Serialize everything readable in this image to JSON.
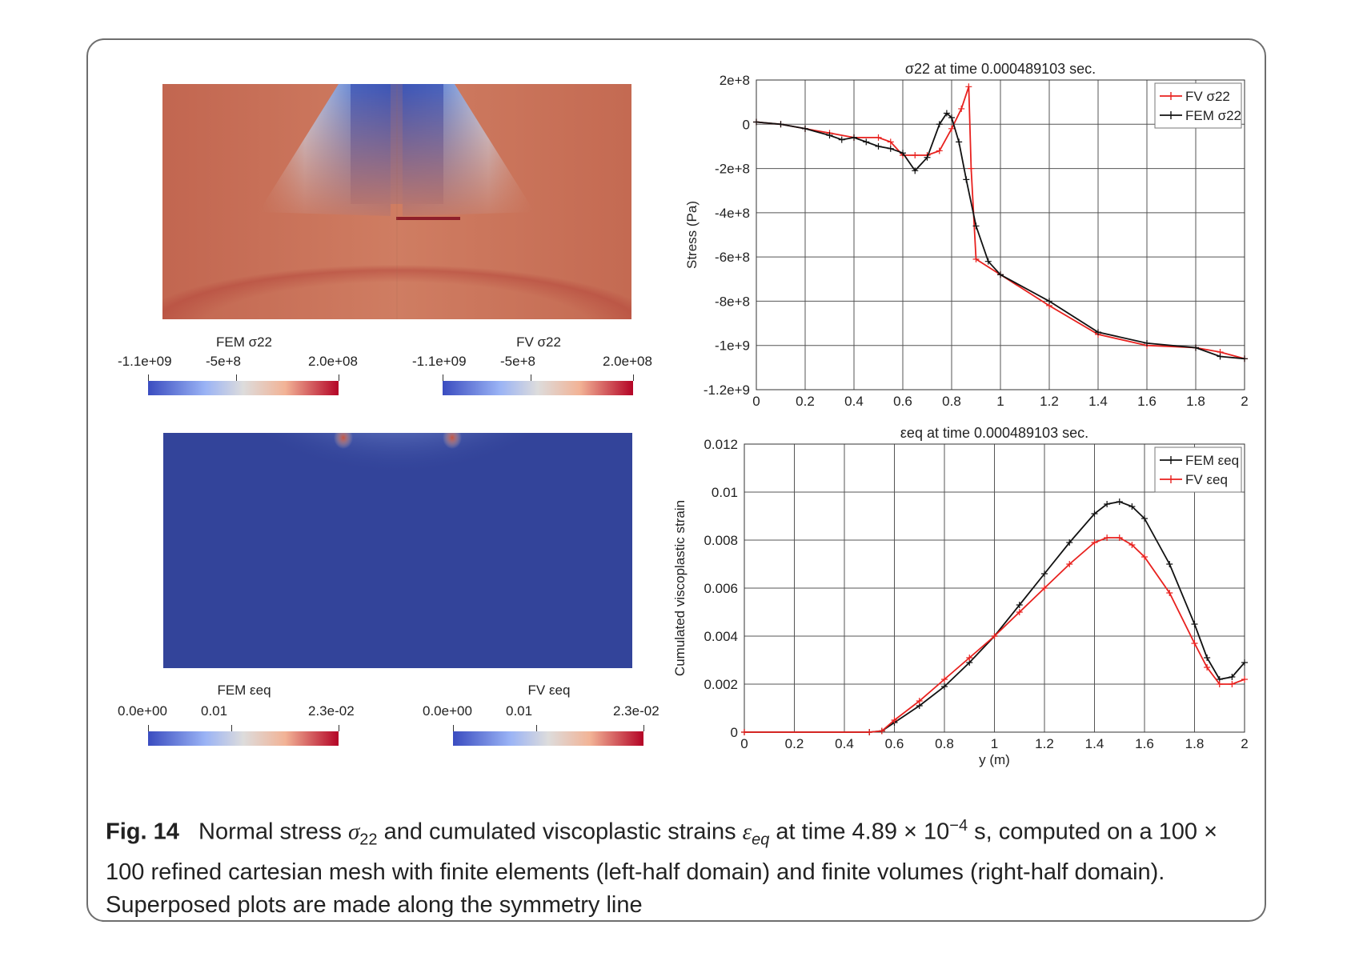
{
  "field_plots": {
    "stress": {
      "colorbars": [
        {
          "title": "FEM σ22",
          "ticks": [
            "-1.1e+09",
            "-5e+8",
            "2.0e+08"
          ]
        },
        {
          "title": "FV σ22",
          "ticks": [
            "-1.1e+09",
            "-5e+8",
            "2.0e+08"
          ]
        }
      ]
    },
    "strain": {
      "colorbars": [
        {
          "title": "FEM εeq",
          "ticks": [
            "0.0e+00",
            "0.01",
            "2.3e-02"
          ]
        },
        {
          "title": "FV εeq",
          "ticks": [
            "0.0e+00",
            "0.01",
            "2.3e-02"
          ]
        }
      ]
    }
  },
  "chart_data": [
    {
      "type": "line",
      "title": "σ22 at time 0.000489103 sec.",
      "xlabel": "y (m)",
      "ylabel": "Stress (Pa)",
      "xlim": [
        0,
        2
      ],
      "ylim": [
        -1200000000,
        200000000
      ],
      "x_ticks": [
        "0",
        "0.2",
        "0.4",
        "0.6",
        "0.8",
        "1",
        "1.2",
        "1.4",
        "1.6",
        "1.8",
        "2"
      ],
      "y_ticks": [
        "2e+8",
        "0",
        "-2e+8",
        "-4e+8",
        "-6e+8",
        "-8e+8",
        "-1e+9",
        "-1.2e+9"
      ],
      "grid": true,
      "legend": "top-right",
      "series": [
        {
          "name": "FV σ22",
          "color": "#e8211e",
          "x": [
            0,
            0.1,
            0.2,
            0.3,
            0.4,
            0.5,
            0.55,
            0.6,
            0.65,
            0.7,
            0.75,
            0.8,
            0.84,
            0.87,
            0.88,
            0.9,
            1.0,
            1.2,
            1.4,
            1.6,
            1.8,
            1.9,
            2.0
          ],
          "y": [
            10000000,
            0,
            -20000000,
            -40000000,
            -60000000,
            -60000000,
            -80000000,
            -140000000,
            -140000000,
            -140000000,
            -120000000,
            -20000000,
            70000000,
            170000000,
            -200000000,
            -610000000,
            -680000000,
            -820000000,
            -950000000,
            -1000000000,
            -1010000000,
            -1030000000,
            -1060000000
          ]
        },
        {
          "name": "FEM σ22",
          "color": "#111111",
          "x": [
            0,
            0.1,
            0.2,
            0.3,
            0.35,
            0.4,
            0.45,
            0.5,
            0.55,
            0.6,
            0.65,
            0.7,
            0.75,
            0.78,
            0.8,
            0.83,
            0.86,
            0.9,
            0.95,
            1.0,
            1.2,
            1.4,
            1.6,
            1.8,
            1.9,
            2.0
          ],
          "y": [
            10000000,
            0,
            -20000000,
            -50000000,
            -70000000,
            -60000000,
            -80000000,
            -100000000,
            -110000000,
            -130000000,
            -210000000,
            -150000000,
            0,
            50000000,
            30000000,
            -80000000,
            -250000000,
            -460000000,
            -620000000,
            -680000000,
            -800000000,
            -940000000,
            -990000000,
            -1010000000,
            -1050000000,
            -1060000000
          ]
        }
      ]
    },
    {
      "type": "line",
      "title": "εeq at time 0.000489103 sec.",
      "xlabel": "y (m)",
      "ylabel": "Cumulated viscoplastic strain",
      "xlim": [
        0,
        2
      ],
      "ylim": [
        0,
        0.012
      ],
      "x_ticks": [
        "0",
        "0.2",
        "0.4",
        "0.6",
        "0.8",
        "1",
        "1.2",
        "1.4",
        "1.6",
        "1.8",
        "2"
      ],
      "y_ticks": [
        "0.012",
        "0.01",
        "0.008",
        "0.006",
        "0.004",
        "0.002",
        "0"
      ],
      "grid": true,
      "legend": "top-right",
      "series": [
        {
          "name": "FEM εeq",
          "color": "#111111",
          "x": [
            0,
            0.5,
            0.55,
            0.6,
            0.7,
            0.8,
            0.9,
            1.0,
            1.1,
            1.2,
            1.3,
            1.4,
            1.45,
            1.5,
            1.55,
            1.6,
            1.7,
            1.8,
            1.85,
            1.9,
            1.95,
            2.0
          ],
          "y": [
            0,
            0,
            5e-05,
            0.0004,
            0.0011,
            0.0019,
            0.0029,
            0.004,
            0.0053,
            0.0066,
            0.0079,
            0.0091,
            0.0095,
            0.0096,
            0.0094,
            0.0089,
            0.007,
            0.0045,
            0.0031,
            0.0022,
            0.0023,
            0.0029
          ]
        },
        {
          "name": "FV εeq",
          "color": "#e8211e",
          "x": [
            0,
            0.5,
            0.55,
            0.6,
            0.7,
            0.8,
            0.9,
            1.0,
            1.1,
            1.2,
            1.3,
            1.4,
            1.45,
            1.5,
            1.55,
            1.6,
            1.7,
            1.8,
            1.85,
            1.9,
            1.95,
            2.0
          ],
          "y": [
            0,
            0,
            5e-05,
            0.0005,
            0.0013,
            0.0022,
            0.0031,
            0.004,
            0.005,
            0.006,
            0.007,
            0.0079,
            0.0081,
            0.0081,
            0.0078,
            0.0073,
            0.0058,
            0.0037,
            0.0027,
            0.002,
            0.002,
            0.0022
          ]
        }
      ]
    }
  ],
  "caption": {
    "label": "Fig. 14",
    "text_1": "Normal stress ",
    "sym_1": "σ",
    "sub_1": "22",
    "text_2": " and cumulated viscoplastic strains ",
    "sym_2": "ε",
    "sub_2": "eq",
    "text_3": " at time 4.89 × 10",
    "sup_1": "−4",
    "text_4": " s, computed on a 100 × 100 refined cartesian mesh with finite elements (left-half domain) and finite volumes (right-half domain). Superposed plots are made along the symmetry line"
  }
}
